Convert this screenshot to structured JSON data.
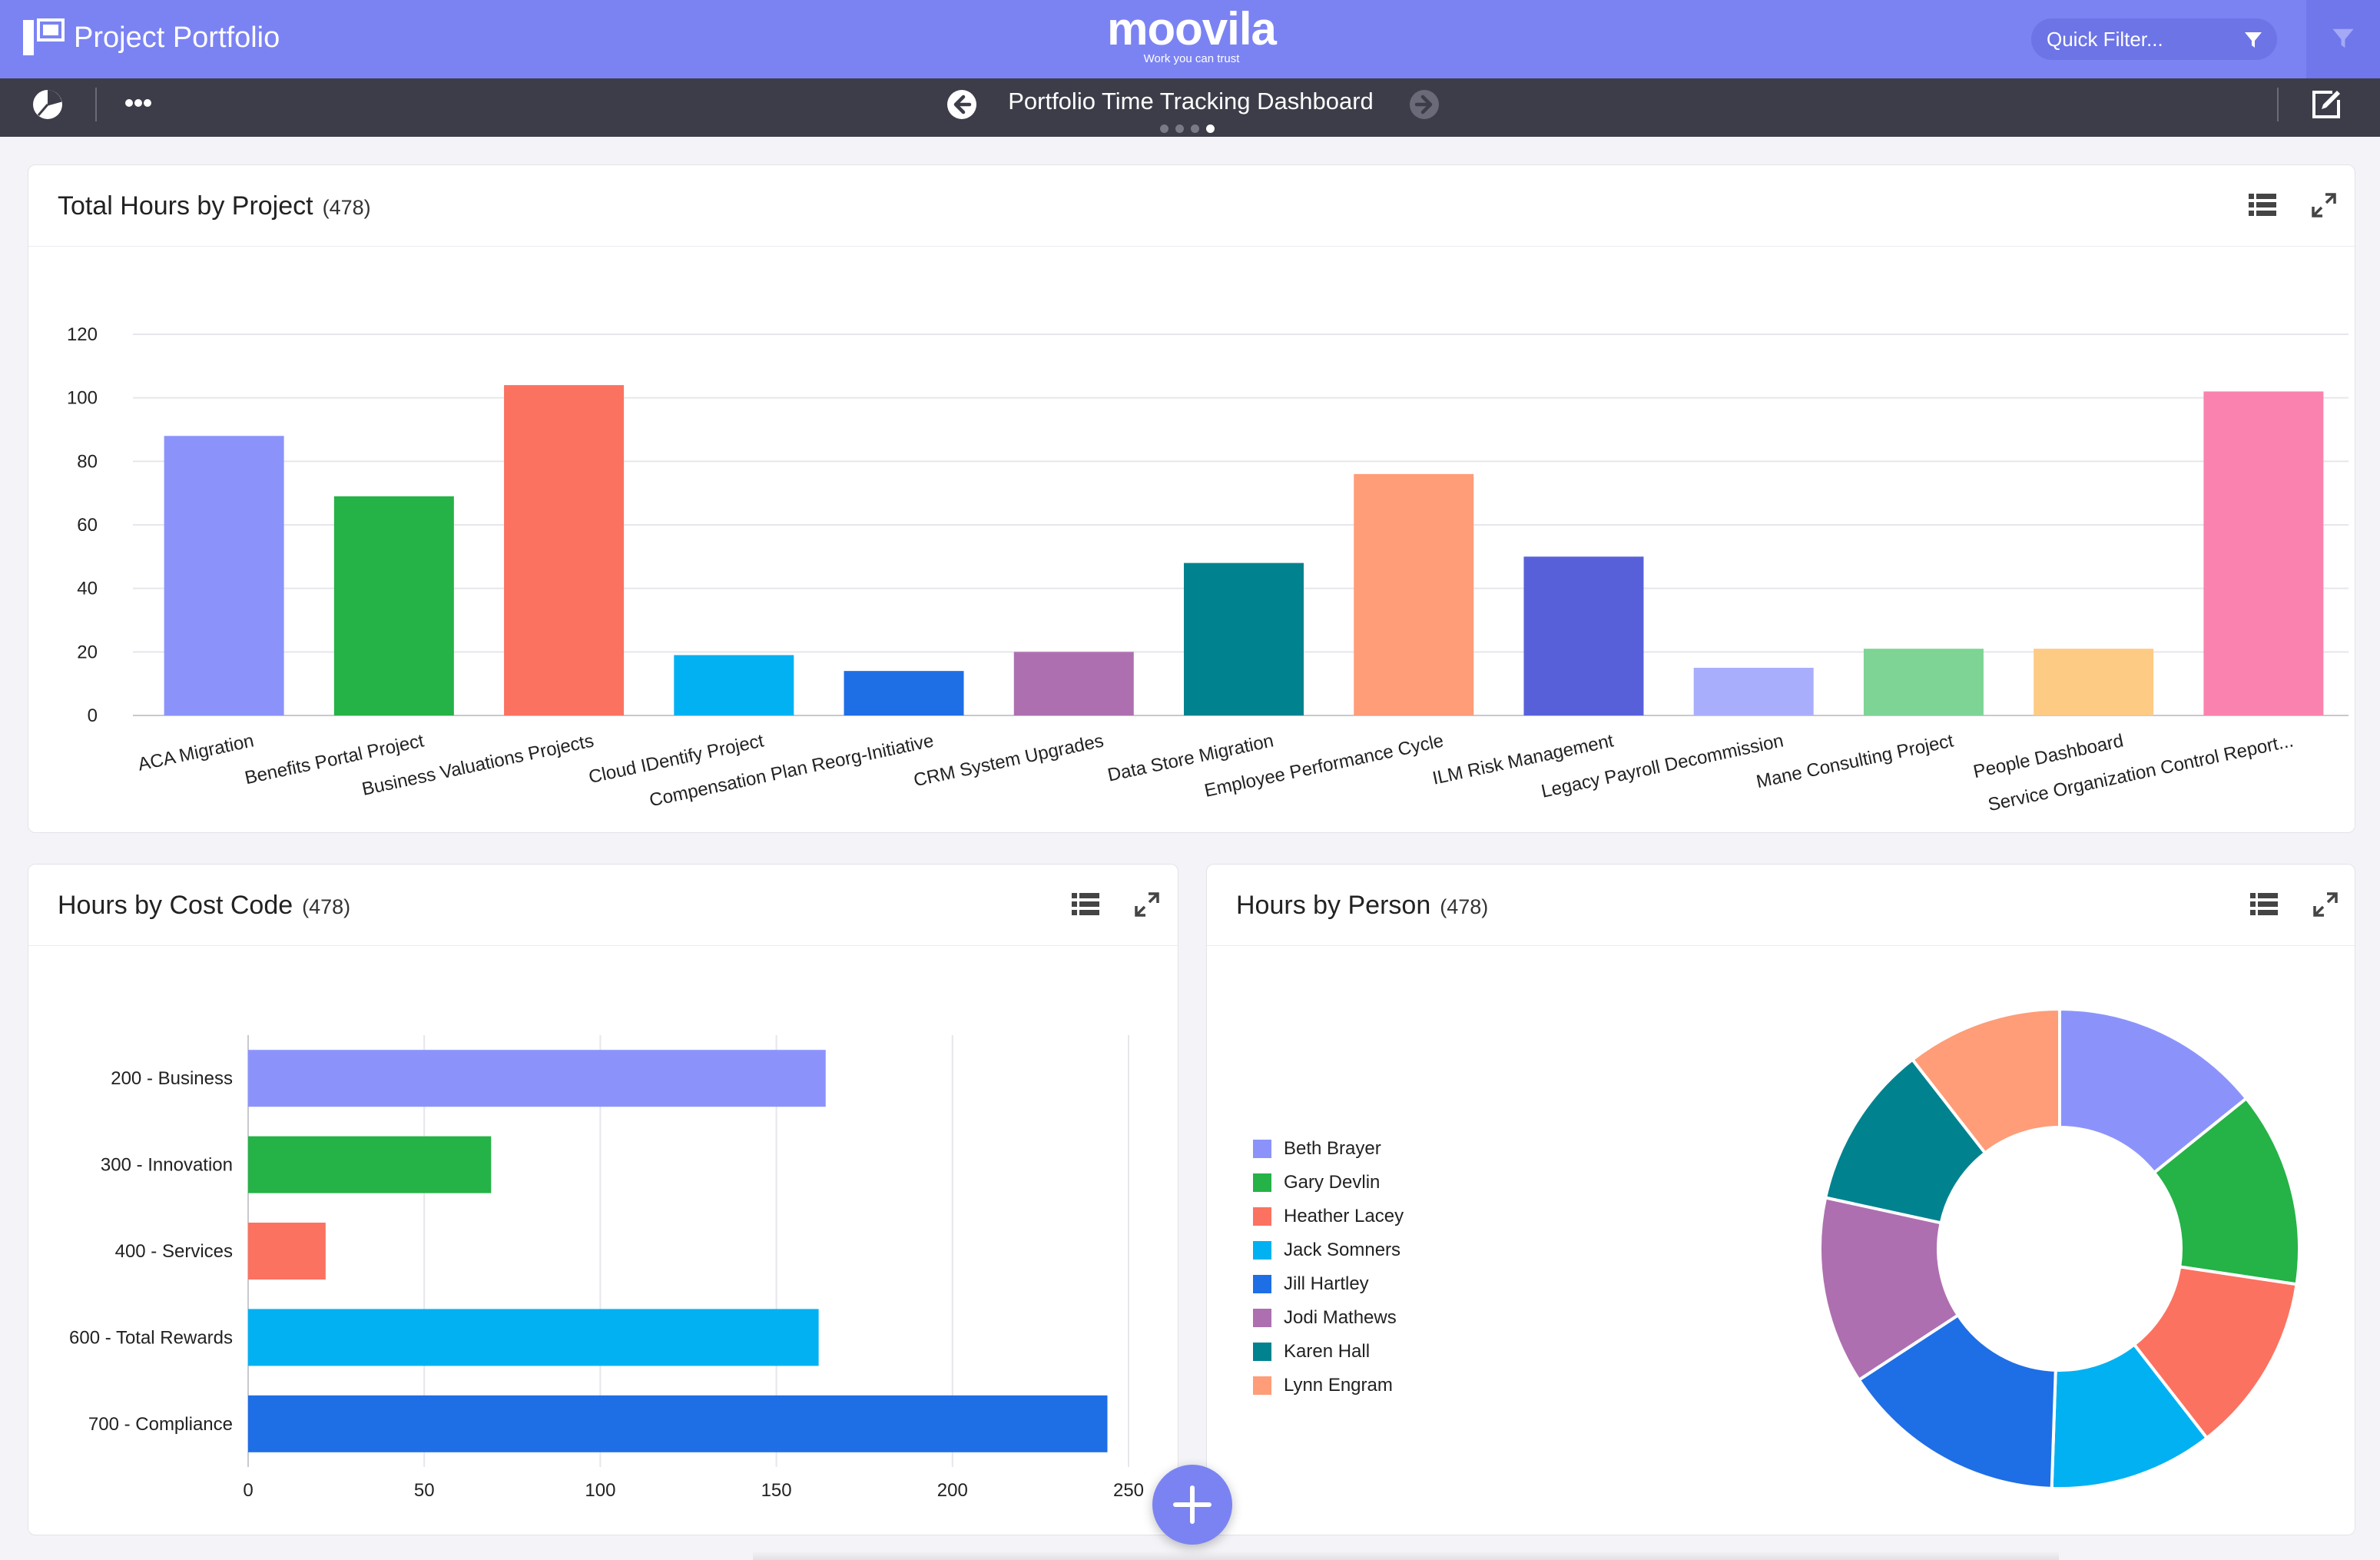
{
  "header": {
    "app_title": "Project Portfolio",
    "logo_text": "moovila",
    "logo_tagline": "Work you can trust",
    "quick_filter_placeholder": "Quick Filter...",
    "accent_color": "#7b83f3"
  },
  "toolbar": {
    "dashboard_title": "Portfolio Time Tracking Dashboard",
    "pages_total": 4,
    "page_active": 4,
    "icons": [
      "pie-chart-icon",
      "more-icon",
      "arrow-left-icon",
      "arrow-right-icon",
      "edit-icon"
    ]
  },
  "cards": {
    "project": {
      "title": "Total Hours by Project",
      "count": "(478)"
    },
    "cost_code": {
      "title": "Hours by Cost Code",
      "count": "(478)"
    },
    "person": {
      "title": "Hours by Person",
      "count": "(478)"
    }
  },
  "chart_data": [
    {
      "type": "bar",
      "orientation": "vertical",
      "categories": [
        "ACA Migration",
        "Benefits Portal Project",
        "Business Valuations Projects",
        "Cloud IDentify Project",
        "Compensation Plan Reorg-Initiative",
        "CRM System Upgrades",
        "Data Store Migration",
        "Employee Performance Cycle",
        "ILM Risk Management",
        "Legacy Payroll Decommission",
        "Mane Consulting Project",
        "People Dashboard",
        "Service Organization Control Report..."
      ],
      "values": [
        88,
        69,
        104,
        19,
        14,
        20,
        48,
        76,
        50,
        15,
        21,
        21,
        102
      ],
      "colors": [
        "#8b93fb",
        "#25b247",
        "#fb7261",
        "#01b1f2",
        "#1e6ee6",
        "#ae6fb0",
        "#00828f",
        "#fe9d78",
        "#5860d9",
        "#a9aefc",
        "#7dd494",
        "#fecb85",
        "#f983ae"
      ],
      "yticks": [
        0,
        20,
        40,
        60,
        80,
        100,
        120
      ],
      "ylim": [
        0,
        120
      ],
      "grid": true
    },
    {
      "type": "bar",
      "orientation": "horizontal",
      "categories": [
        "200 - Business",
        "300 - Innovation",
        "400 - Services",
        "600 - Total Rewards",
        "700 - Compliance"
      ],
      "values": [
        164,
        69,
        22,
        162,
        244
      ],
      "colors": [
        "#8b93fb",
        "#25b247",
        "#fb7261",
        "#01b1f2",
        "#1e6ee6"
      ],
      "xticks": [
        0,
        50,
        100,
        150,
        200,
        250
      ],
      "xlim": [
        0,
        250
      ],
      "grid": true
    },
    {
      "type": "pie",
      "style": "donut",
      "labels": [
        "Beth Brayer",
        "Gary Devlin",
        "Heather Lacey",
        "Jack Somners",
        "Jill Hartley",
        "Jodi Mathews",
        "Karen Hall",
        "Lynn Engram"
      ],
      "values": [
        13.5,
        12.5,
        11.5,
        10.5,
        14.5,
        12,
        10.5,
        10
      ],
      "colors": [
        "#8b93fb",
        "#25b247",
        "#fb7261",
        "#01b1f2",
        "#1e6ee6",
        "#ae6fb0",
        "#00828f",
        "#fe9d78"
      ],
      "legend": "left"
    }
  ]
}
